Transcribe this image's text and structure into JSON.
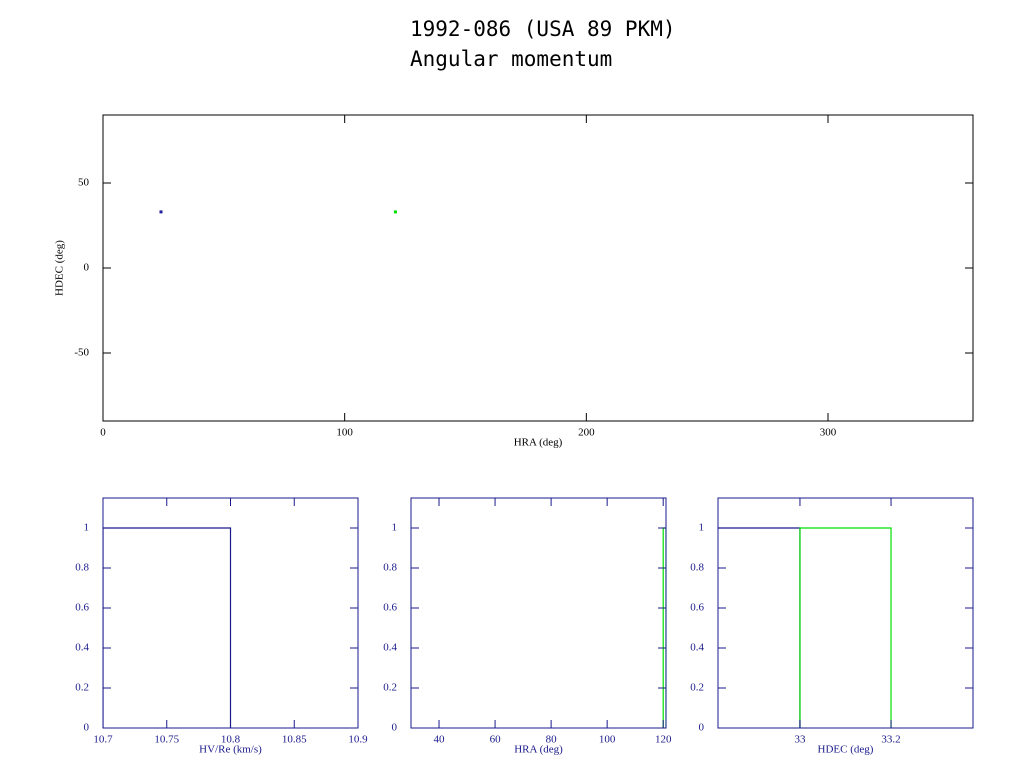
{
  "chart_data": [
    {
      "type": "scatter",
      "title": "1992-086 (USA 89 PKM)",
      "subtitle": "Angular momentum",
      "xlabel": "HRA (deg)",
      "ylabel": "HDEC (deg)",
      "axis_color": "#000000",
      "xlim": [
        0,
        360
      ],
      "ylim": [
        -90,
        90
      ],
      "xticks": [
        0,
        100,
        200,
        300
      ],
      "yticks": [
        -50,
        0,
        50
      ],
      "series": [
        {
          "color": "#2020a0",
          "x": [
            24
          ],
          "values": [
            33
          ]
        },
        {
          "color": "#00e000",
          "x": [
            121
          ],
          "values": [
            33
          ]
        }
      ]
    },
    {
      "type": "histogram",
      "xlabel": "HV/Re (km/s)",
      "axis_color": "#1a1a8c",
      "xlim": [
        10.7,
        10.9
      ],
      "ylim": [
        0,
        1.15
      ],
      "xticks": [
        10.7,
        10.75,
        10.8,
        10.85,
        10.9
      ],
      "yticks": [
        0,
        0.2,
        0.4,
        0.6,
        0.8,
        1
      ],
      "series": [
        {
          "color": "#1a1a8c",
          "bins": [
            10.7,
            10.8
          ],
          "values": [
            1
          ]
        }
      ]
    },
    {
      "type": "histogram",
      "xlabel": "HRA (deg)",
      "axis_color": "#1a1a8c",
      "xlim": [
        30,
        121
      ],
      "ylim": [
        0,
        1.15
      ],
      "xticks": [
        40,
        60,
        80,
        100,
        120
      ],
      "yticks": [
        0,
        0.2,
        0.4,
        0.6,
        0.8,
        1
      ],
      "series": [
        {
          "color": "#00e000",
          "bins": [
            120,
            121
          ],
          "values": [
            1
          ]
        }
      ]
    },
    {
      "type": "histogram",
      "xlabel": "HDEC (deg)",
      "axis_color": "#1a1a8c",
      "xlim": [
        32.82,
        33.38
      ],
      "ylim": [
        0,
        1.15
      ],
      "xticks": [
        33,
        33.2
      ],
      "yticks": [
        0,
        0.2,
        0.4,
        0.6,
        0.8,
        1
      ],
      "series": [
        {
          "color": "#1a1a8c",
          "bins": [
            32.8,
            33
          ],
          "values": [
            1
          ]
        },
        {
          "color": "#00e000",
          "bins": [
            33,
            33.2
          ],
          "values": [
            1
          ]
        }
      ]
    }
  ]
}
